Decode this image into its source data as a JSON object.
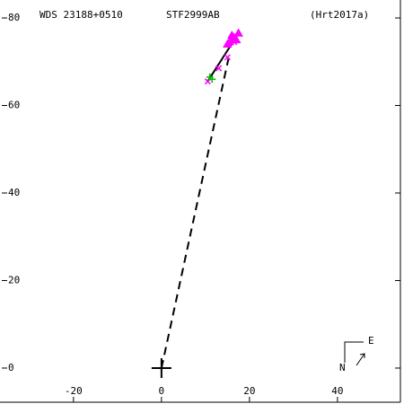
{
  "chart_data": {
    "type": "scatter",
    "title": "WDS 23188+0510",
    "subtitle": "STF2999AB",
    "reference": "(Hrt2017a)",
    "compass": {
      "east": "E",
      "north": "N"
    },
    "xlim": [
      -36.7,
      54.3
    ],
    "ylim": [
      -7.8,
      84.1
    ],
    "xticks": [
      -20,
      0,
      20,
      40
    ],
    "yticks": [
      0,
      20,
      40,
      60,
      80
    ],
    "origin": [
      0,
      0
    ],
    "series": [
      {
        "color": "#ff00ff",
        "marker": "triangle",
        "x": [
          15.5,
          16.5,
          17,
          17.5,
          16,
          15
        ],
        "values": [
          74.5,
          75.5,
          75,
          76.5,
          76,
          74
        ]
      },
      {
        "color": "#ff00ff",
        "marker": "x",
        "x": [
          10.5,
          13,
          15,
          16.5
        ],
        "values": [
          65.5,
          68.5,
          71,
          74.5
        ]
      },
      {
        "color": "#00bb00",
        "marker": "plus",
        "x": [
          11,
          11.5
        ],
        "values": [
          66.5,
          66
        ]
      }
    ],
    "lines": [
      {
        "style": "solid",
        "x": [
          10.5,
          17.5
        ],
        "values": [
          65.5,
          76.5
        ]
      },
      {
        "style": "dashed",
        "x": [
          0,
          15.5
        ],
        "values": [
          0,
          72
        ]
      }
    ]
  }
}
